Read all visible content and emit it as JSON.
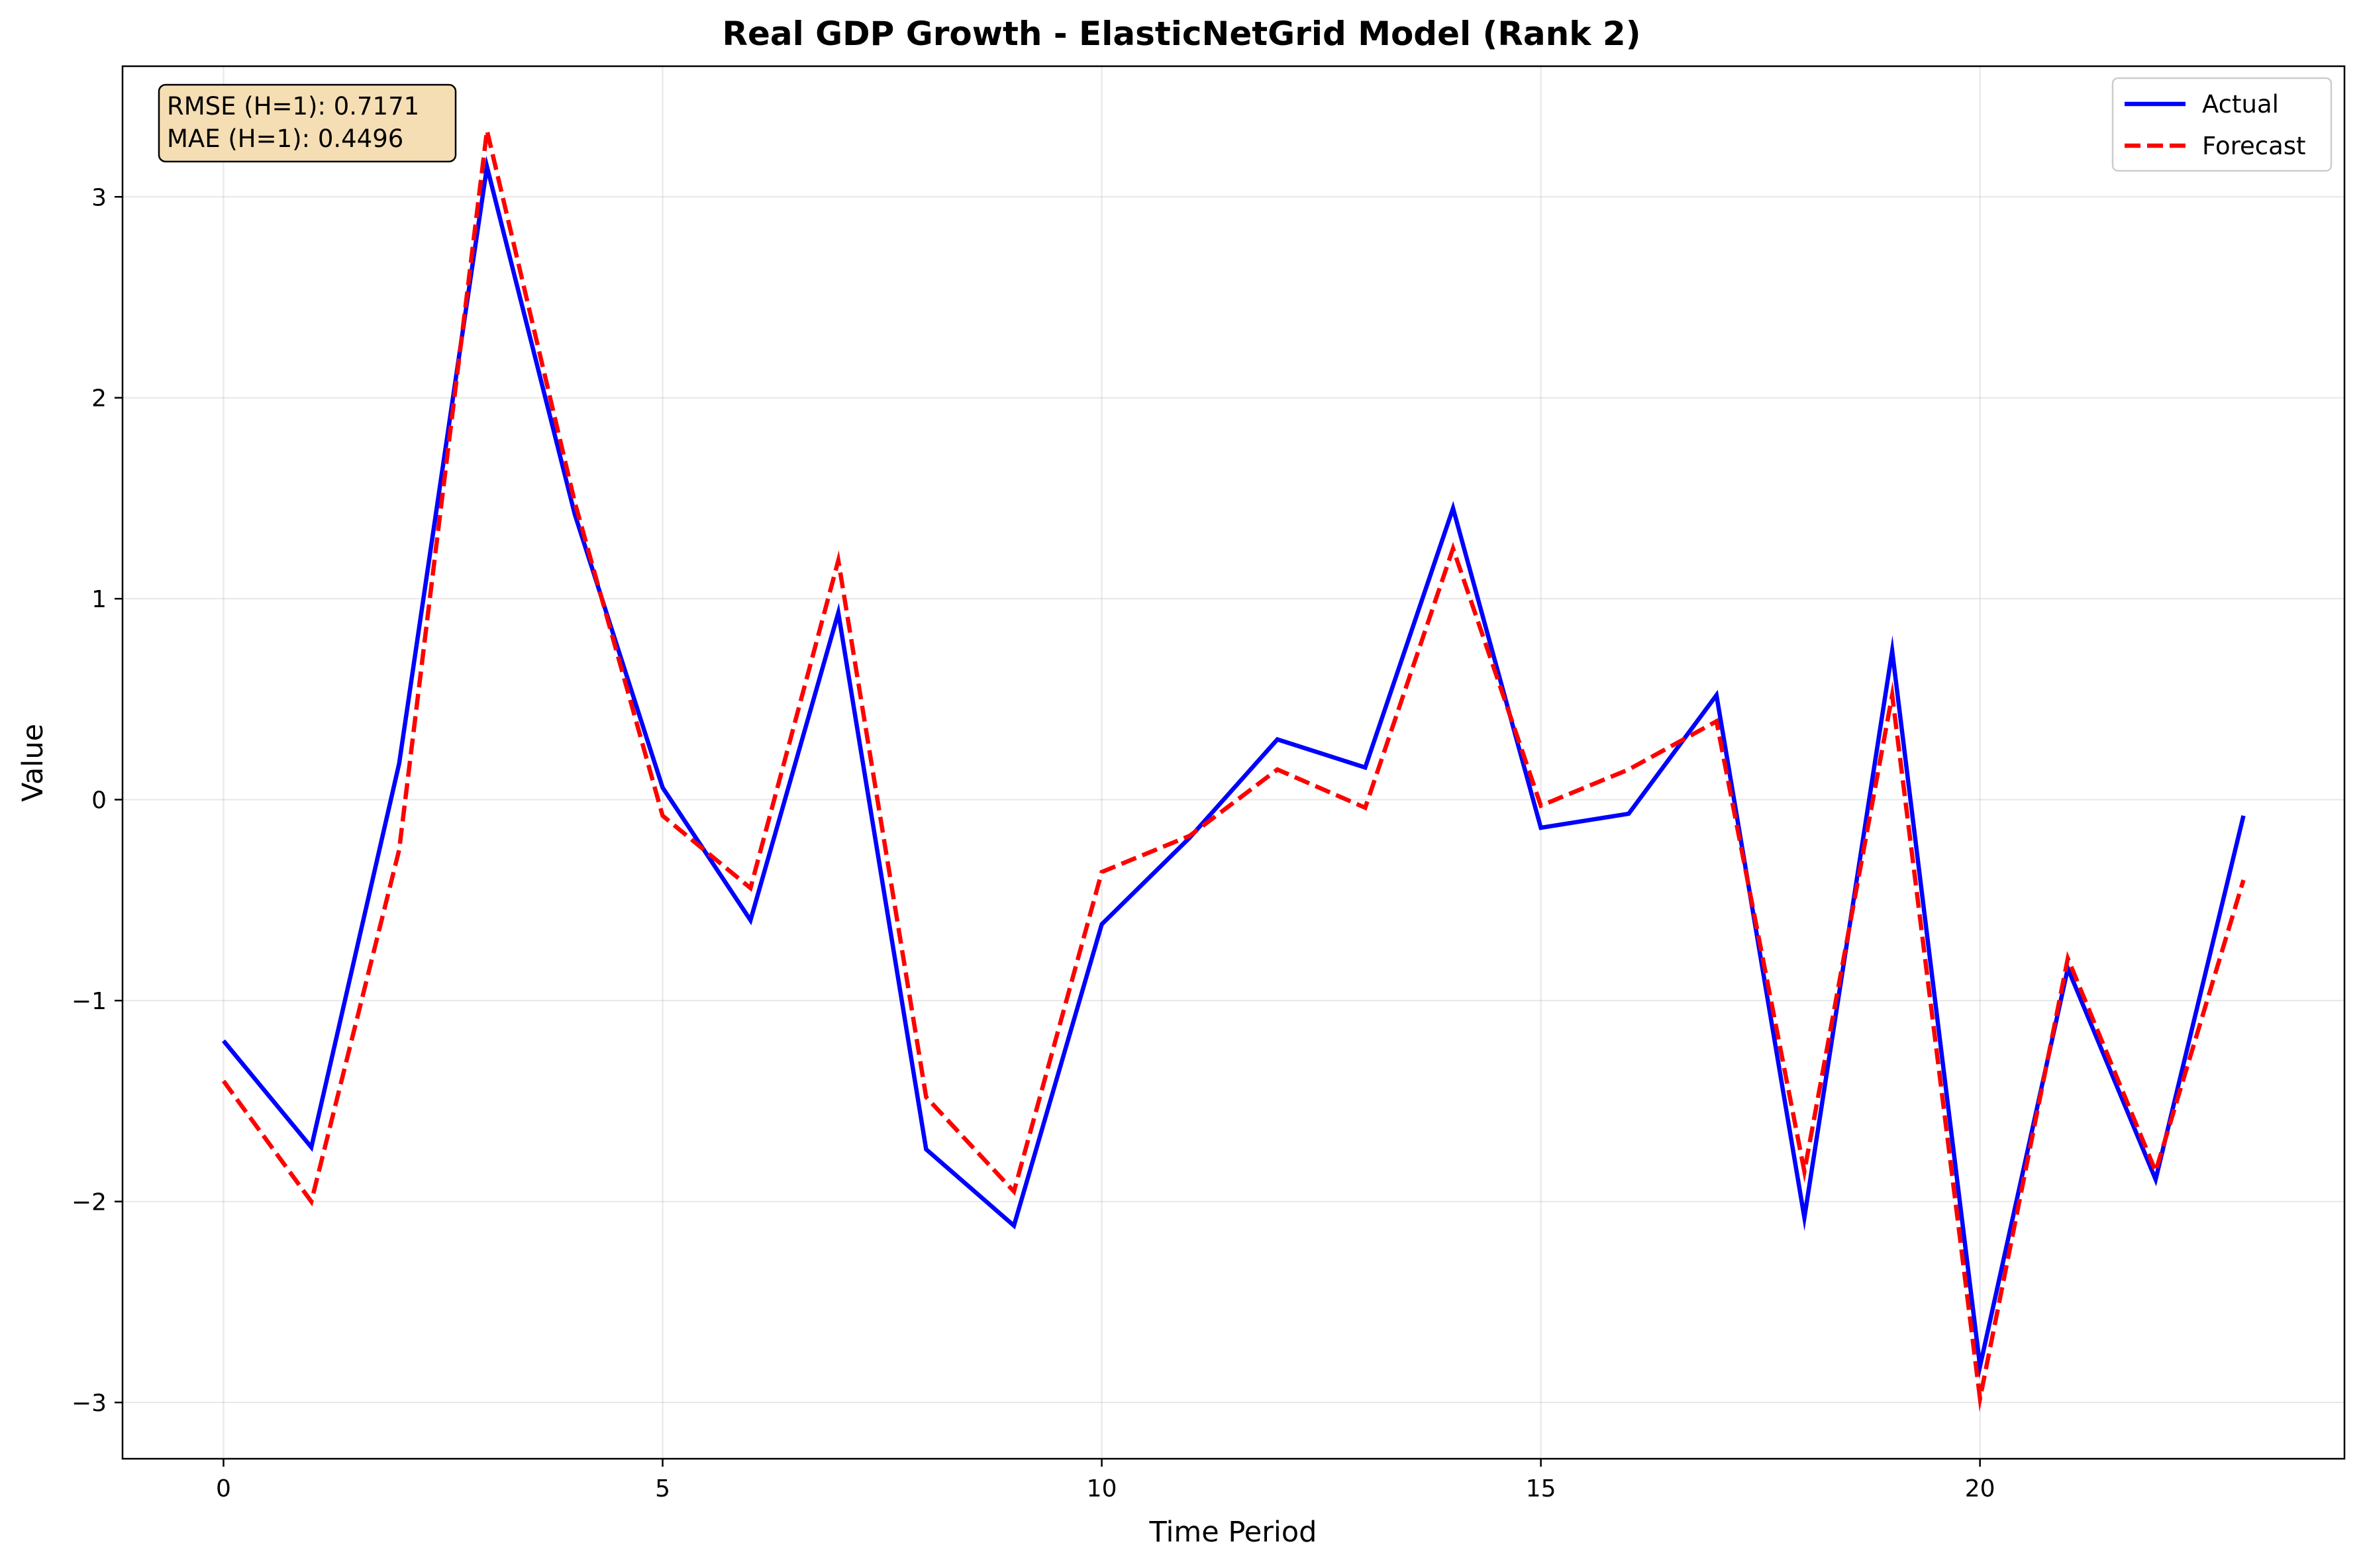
{
  "chart_data": {
    "type": "line",
    "title": "Real GDP Growth - ElasticNetGrid Model (Rank 2)",
    "xlabel": "Time Period",
    "ylabel": "Value",
    "xlim": [
      -1.15,
      24.15
    ],
    "ylim": [
      -3.28,
      3.65
    ],
    "x_ticks": [
      0,
      5,
      10,
      15,
      20
    ],
    "x_tick_labels": [
      "0",
      "5",
      "10",
      "15",
      "20"
    ],
    "y_ticks": [
      -3,
      -2,
      -1,
      0,
      1,
      2,
      3
    ],
    "y_tick_labels": [
      "−3",
      "−2",
      "−1",
      "0",
      "1",
      "2",
      "3"
    ],
    "grid": true,
    "legend_position": "top-right",
    "x": [
      0,
      1,
      2,
      3,
      4,
      5,
      6,
      7,
      8,
      9,
      10,
      11,
      12,
      13,
      14,
      15,
      16,
      17,
      18,
      19,
      20,
      21,
      22,
      23
    ],
    "series": [
      {
        "name": "Actual",
        "color": "#0000ff",
        "style": "solid",
        "values": [
          -1.2,
          -1.73,
          0.18,
          3.15,
          1.42,
          0.06,
          -0.6,
          0.93,
          -1.74,
          -2.12,
          -0.62,
          -0.19,
          0.3,
          0.16,
          1.45,
          -0.14,
          -0.07,
          0.52,
          -2.08,
          0.74,
          -2.82,
          -0.84,
          -1.89,
          -0.08
        ]
      },
      {
        "name": "Forecast",
        "color": "#ff0000",
        "style": "dashed",
        "values": [
          -1.4,
          -2.0,
          -0.25,
          3.33,
          1.48,
          -0.08,
          -0.44,
          1.19,
          -1.48,
          -1.95,
          -0.36,
          -0.18,
          0.15,
          -0.04,
          1.25,
          -0.03,
          0.15,
          0.39,
          -1.85,
          0.52,
          -2.98,
          -0.79,
          -1.85,
          -0.4
        ]
      }
    ],
    "annotations": [
      {
        "lines": [
          "RMSE (H=1): 0.7171",
          "MAE (H=1): 0.4496"
        ],
        "box_color": "#f5deb3",
        "position": "top-left"
      }
    ]
  }
}
